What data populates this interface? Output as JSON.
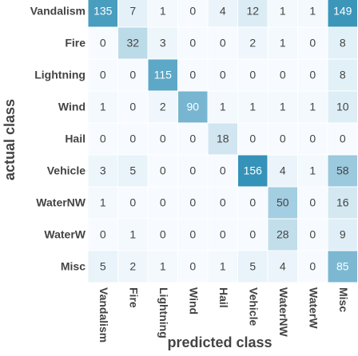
{
  "chart_data": {
    "type": "heatmap",
    "x_label": "predicted class",
    "y_label": "actual class",
    "x_categories": [
      "Vandalism",
      "Fire",
      "Lightning",
      "Wind",
      "Hail",
      "Vehicle",
      "WaterNW",
      "WaterW",
      "Misc"
    ],
    "y_categories": [
      "Vandalism",
      "Fire",
      "Lightning",
      "Wind",
      "Hail",
      "Vehicle",
      "WaterNW",
      "WaterW",
      "Misc"
    ],
    "values": [
      [
        135,
        7,
        1,
        0,
        4,
        12,
        1,
        1,
        149
      ],
      [
        0,
        32,
        3,
        0,
        0,
        2,
        1,
        0,
        8
      ],
      [
        0,
        0,
        115,
        0,
        0,
        0,
        0,
        0,
        8
      ],
      [
        1,
        0,
        2,
        90,
        1,
        1,
        1,
        1,
        10
      ],
      [
        0,
        0,
        0,
        0,
        18,
        0,
        0,
        0,
        0
      ],
      [
        3,
        5,
        0,
        0,
        0,
        156,
        4,
        1,
        58
      ],
      [
        1,
        0,
        0,
        0,
        0,
        0,
        50,
        0,
        16
      ],
      [
        0,
        1,
        0,
        0,
        0,
        0,
        28,
        0,
        9
      ],
      [
        5,
        2,
        1,
        0,
        1,
        5,
        4,
        0,
        85
      ]
    ],
    "color": "#3592b8"
  }
}
